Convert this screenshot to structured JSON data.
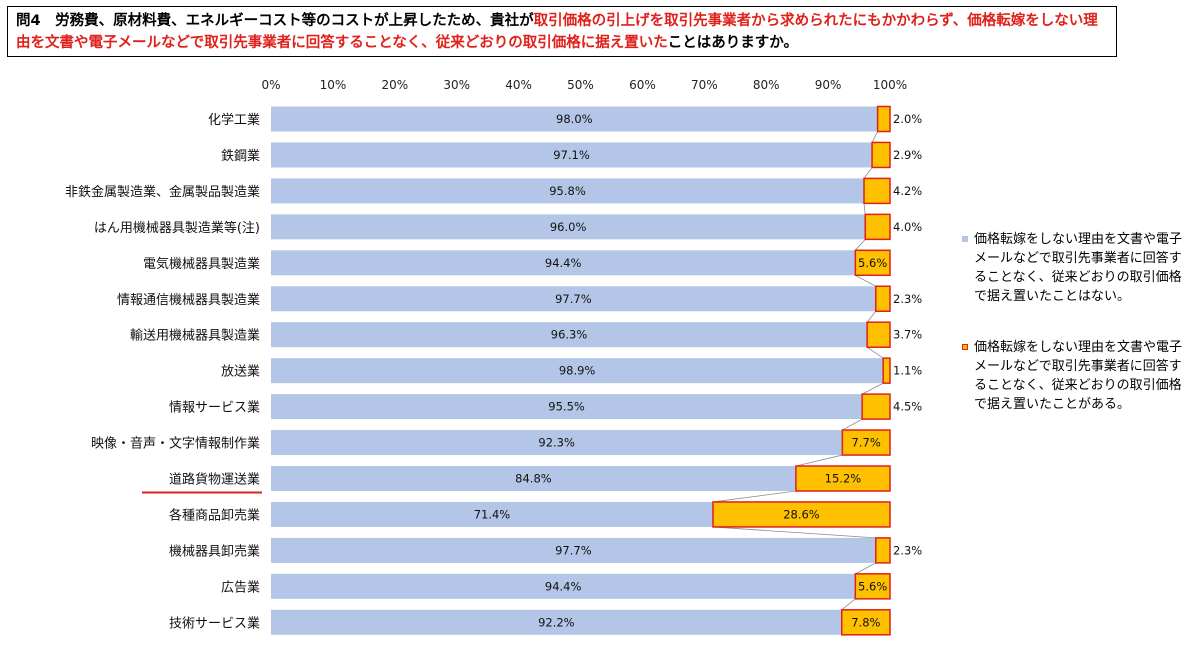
{
  "question": {
    "prefix": "問4　労務費、原材料費、エネルギーコスト等のコストが上昇したため、貴社が",
    "highlight": "取引価格の引上げを取引先事業者から求められたにもかかわらず、価格転嫁をしない理由を文書や電子メールなどで取引先事業者に回答することなく、従来どおりの取引価格に据え置いた",
    "suffix": "ことはありますか。"
  },
  "colors": {
    "series0": "#b4c6e7",
    "series1": "#ffc000",
    "series1_border": "#e0201a",
    "connector": "#8c8c8c",
    "underline": "#e0201a"
  },
  "chart_data": {
    "type": "bar",
    "orientation": "horizontal",
    "stacked": true,
    "xlim": [
      0,
      100
    ],
    "xticks": [
      "0%",
      "10%",
      "20%",
      "30%",
      "40%",
      "50%",
      "60%",
      "70%",
      "80%",
      "90%",
      "100%"
    ],
    "categories": [
      "化学工業",
      "鉄鋼業",
      "非鉄金属製造業、金属製品製造業",
      "はん用機械器具製造業等(注)",
      "電気機械器具製造業",
      "情報通信機械器具製造業",
      "輸送用機械器具製造業",
      "放送業",
      "情報サービス業",
      "映像・音声・文字情報制作業",
      "道路貨物運送業",
      "各種商品卸売業",
      "機械器具卸売業",
      "広告業",
      "技術サービス業"
    ],
    "highlighted_category": "道路貨物運送業",
    "series": [
      {
        "name": "価格転嫁をしない理由を文書や電子メールなどで取引先事業者に回答することなく、従来どおりの取引価格で据え置いたことはない。",
        "values": [
          98.0,
          97.1,
          95.8,
          96.0,
          94.4,
          97.7,
          96.3,
          98.9,
          95.5,
          92.3,
          84.8,
          71.4,
          97.7,
          94.4,
          92.2
        ],
        "labels": [
          "98.0%",
          "97.1%",
          "95.8%",
          "96.0%",
          "94.4%",
          "97.7%",
          "96.3%",
          "98.9%",
          "95.5%",
          "92.3%",
          "84.8%",
          "71.4%",
          "97.7%",
          "94.4%",
          "92.2%"
        ]
      },
      {
        "name": "価格転嫁をしない理由を文書や電子メールなどで取引先事業者に回答することなく、従来どおりの取引価格で据え置いたことがある。",
        "values": [
          2.0,
          2.9,
          4.2,
          4.0,
          5.6,
          2.3,
          3.7,
          1.1,
          4.5,
          7.7,
          15.2,
          28.6,
          2.3,
          5.6,
          7.8
        ],
        "labels": [
          "2.0%",
          "2.9%",
          "4.2%",
          "4.0%",
          "5.6%",
          "2.3%",
          "3.7%",
          "1.1%",
          "4.5%",
          "7.7%",
          "15.2%",
          "28.6%",
          "2.3%",
          "5.6%",
          "7.8%"
        ]
      }
    ],
    "legend_position": "right",
    "connector_lines": true,
    "grid": false
  }
}
